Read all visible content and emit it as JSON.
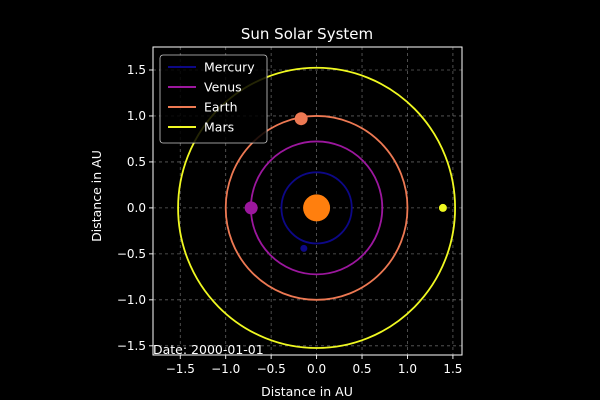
{
  "chart_data": {
    "type": "scatter",
    "title": "Sun Solar System",
    "xlabel": "Distance in AU",
    "ylabel": "Distance in AU",
    "xlim": [
      -1.8,
      1.6
    ],
    "ylim": [
      -1.6,
      1.75
    ],
    "xticks": [
      -1.5,
      -1.0,
      -0.5,
      0.0,
      0.5,
      1.0,
      1.5
    ],
    "xtick_labels": [
      "−1.5",
      "−1.0",
      "−0.5",
      "0.0",
      "0.5",
      "1.0",
      "1.5"
    ],
    "yticks": [
      -1.5,
      -1.0,
      -0.5,
      0.0,
      0.5,
      1.0,
      1.5
    ],
    "ytick_labels": [
      "−1.5",
      "−1.0",
      "−0.5",
      "0.0",
      "0.5",
      "1.0",
      "1.5"
    ],
    "grid": true,
    "legend_position": "top-left",
    "background_color": "#000000",
    "sun": {
      "x": 0.0,
      "y": 0.0,
      "color": "#ff7f0e"
    },
    "date_text": "Date: 2000-01-01",
    "series": [
      {
        "name": "Mercury",
        "color": "#0d0887",
        "orbit_radius": 0.387,
        "position": [
          -0.14,
          -0.44
        ]
      },
      {
        "name": "Venus",
        "color": "#9c179e",
        "orbit_radius": 0.723,
        "position": [
          -0.72,
          0.0
        ]
      },
      {
        "name": "Earth",
        "color": "#ed7953",
        "orbit_radius": 1.0,
        "position": [
          -0.17,
          0.97
        ]
      },
      {
        "name": "Mars",
        "color": "#f0f921",
        "orbit_radius": 1.524,
        "position": [
          1.39,
          0.0
        ]
      }
    ]
  }
}
